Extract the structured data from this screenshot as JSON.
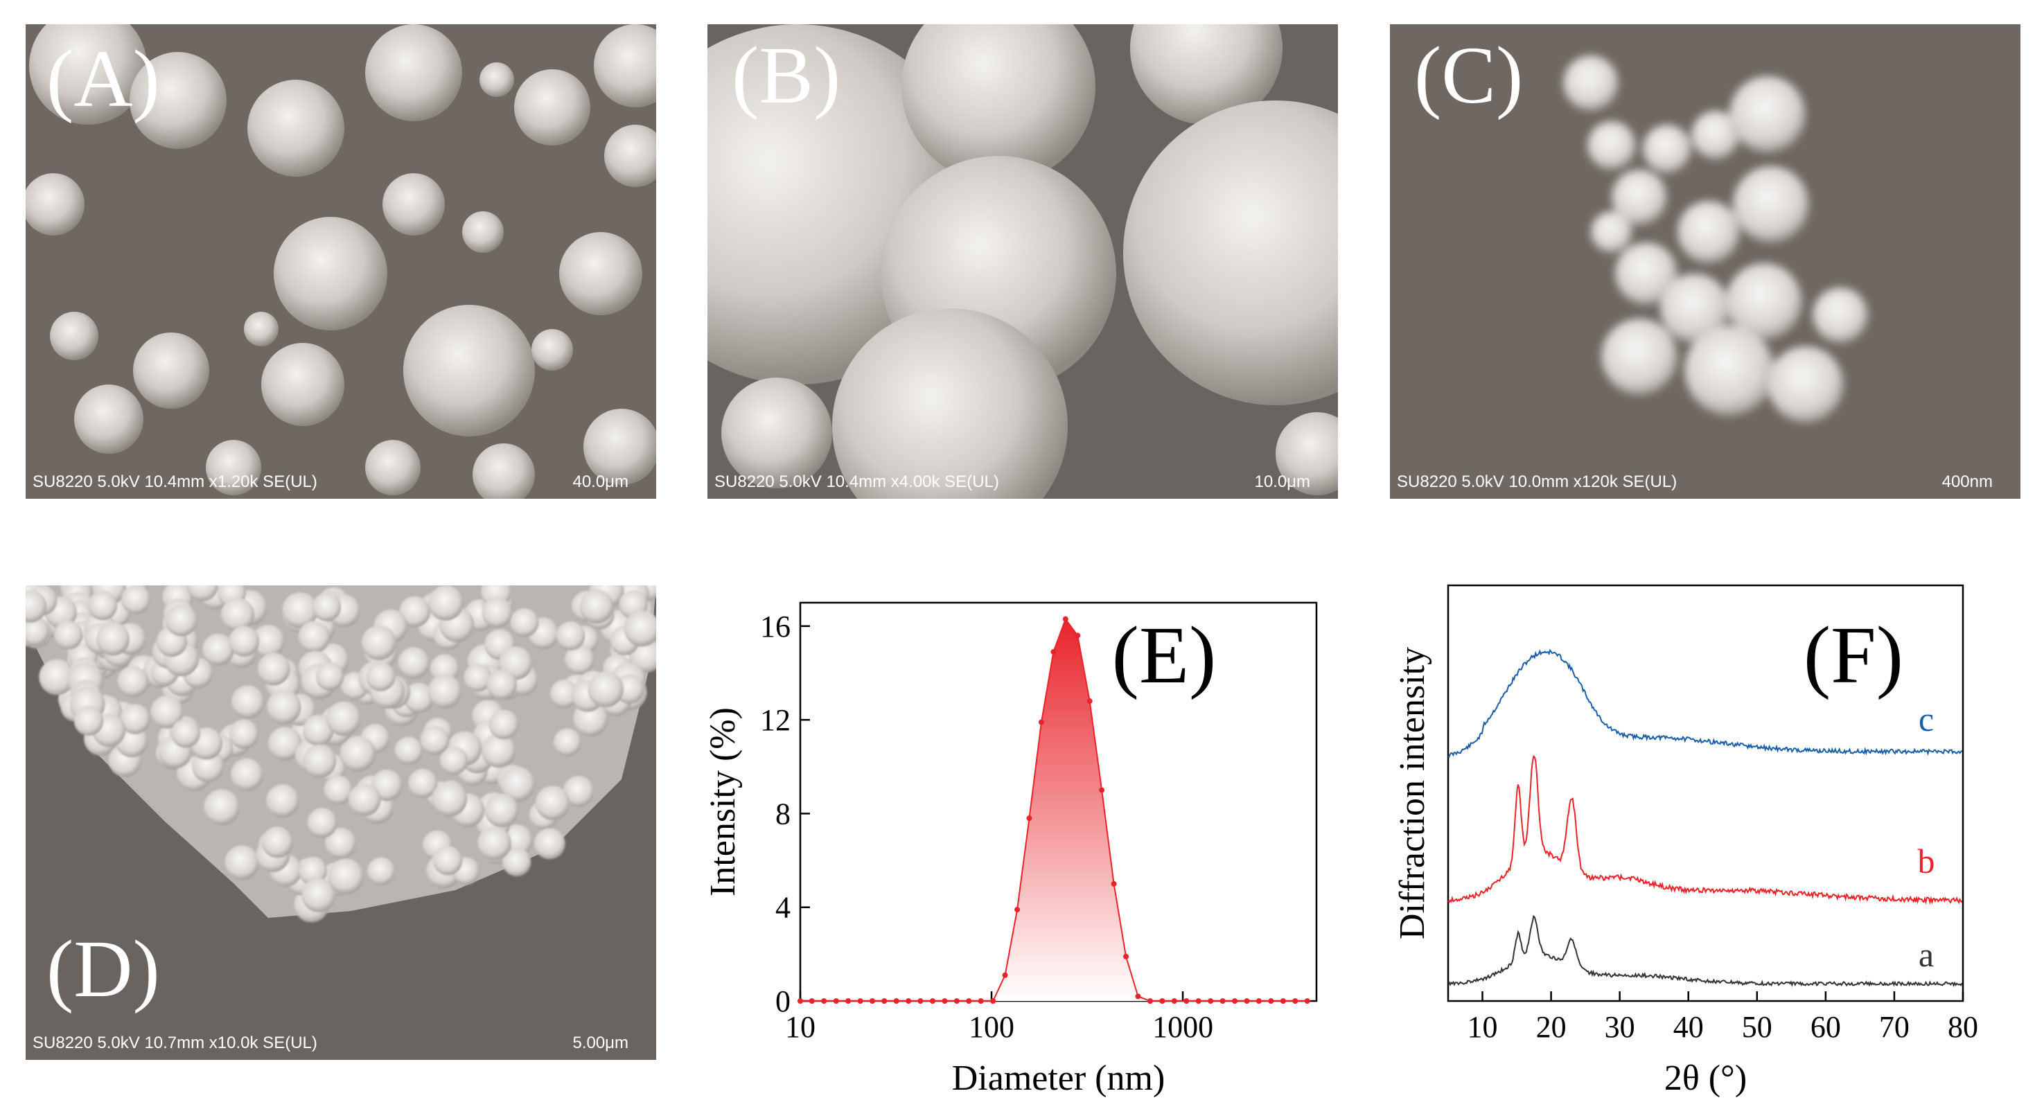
{
  "panels": [
    {
      "label": "(A)",
      "info": "SU8220 5.0kV 10.4mm x1.20k SE(UL)",
      "scale": "40.0μm"
    },
    {
      "label": "(B)",
      "info": "SU8220 5.0kV 10.4mm x4.00k SE(UL)",
      "scale": "10.0μm"
    },
    {
      "label": "(C)",
      "info": "SU8220 5.0kV 10.0mm x120k SE(UL)",
      "scale": "400nm"
    },
    {
      "label": "(D)",
      "info": "SU8220 5.0kV 10.7mm x10.0k SE(UL)",
      "scale": "5.00μm"
    }
  ],
  "colors": {
    "sem_bg": "#6e6762",
    "sem_particle": "#d9d6d2",
    "red": "#e8242a",
    "blue": "#1a5ea8",
    "dark": "#333333"
  },
  "chart_data": [
    {
      "type": "area",
      "panel_label": "(E)",
      "xlabel": "Diameter (nm)",
      "ylabel": "Intensity (%)",
      "xscale": "log",
      "xlim": [
        10,
        5000
      ],
      "ylim": [
        0,
        17
      ],
      "x_ticks": [
        "10",
        "100",
        "1000"
      ],
      "y_ticks": [
        "0",
        "4",
        "8",
        "12",
        "16"
      ],
      "x": [
        10,
        11.5,
        13.3,
        15.4,
        17.8,
        20.6,
        23.8,
        27.5,
        31.8,
        36.8,
        42.5,
        49.2,
        56.9,
        65.8,
        76.1,
        88.0,
        101.8,
        117.7,
        136.2,
        157.5,
        182.2,
        210.7,
        243.7,
        281.9,
        326.0,
        377.1,
        436.2,
        504.5,
        583.5,
        674.9,
        780.7,
        902.9,
        1044.4,
        1208.0,
        1397.2,
        1616.1,
        1869.2,
        2162.0,
        2500.7,
        2892.4,
        3345.5,
        3869.5,
        4475.6
      ],
      "values": [
        0,
        0,
        0,
        0,
        0,
        0,
        0,
        0,
        0,
        0,
        0,
        0,
        0,
        0,
        0,
        0,
        0,
        1.1,
        3.9,
        7.8,
        11.9,
        14.9,
        16.3,
        15.6,
        12.8,
        9.0,
        5.0,
        1.9,
        0.2,
        0,
        0,
        0,
        0,
        0,
        0,
        0,
        0,
        0,
        0,
        0,
        0,
        0,
        0
      ]
    },
    {
      "type": "line",
      "panel_label": "(F)",
      "xlabel": "2θ (°)",
      "ylabel": "Diffraction intensity",
      "xlim": [
        5,
        80
      ],
      "x_ticks": [
        "10",
        "20",
        "30",
        "40",
        "50",
        "60",
        "70",
        "80"
      ],
      "series": [
        {
          "name": "c",
          "color": "#1a5ea8",
          "offset": 0.0
        },
        {
          "name": "b",
          "color": "#e8242a",
          "offset": 0.0
        },
        {
          "name": "a",
          "color": "#333333",
          "offset": 0.0
        }
      ]
    }
  ]
}
